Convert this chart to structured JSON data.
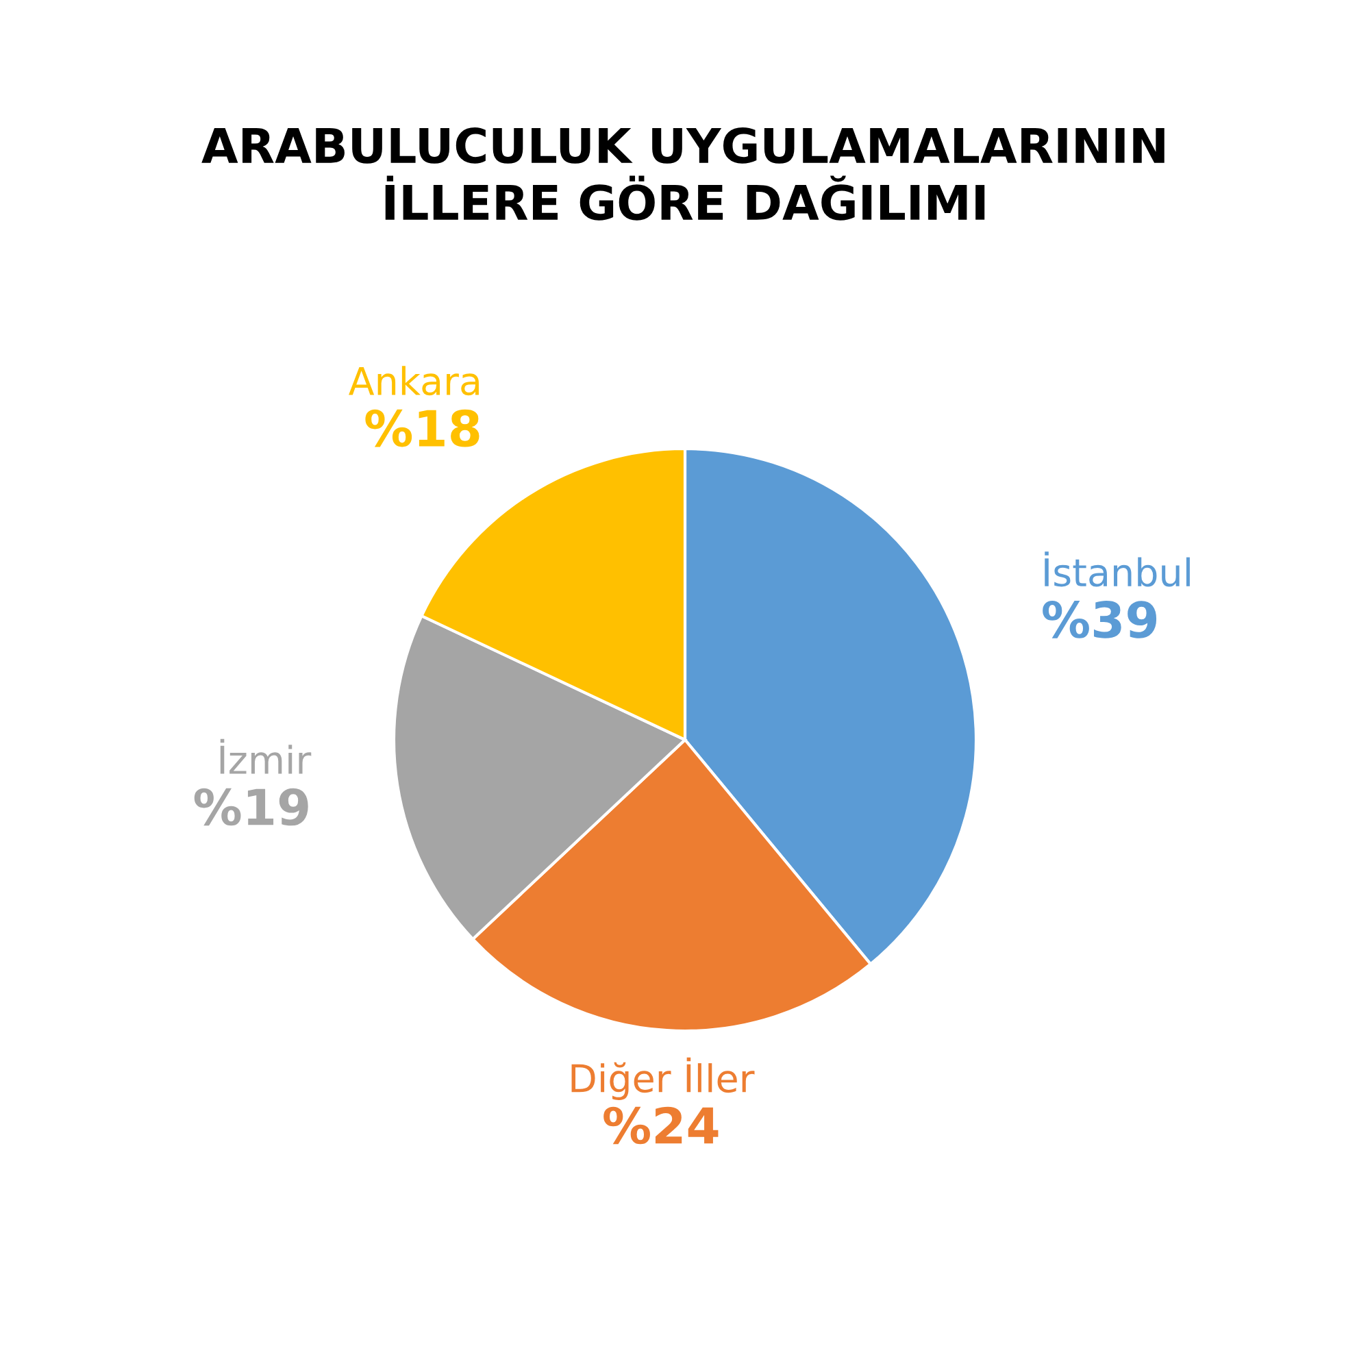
{
  "chart_data": {
    "type": "pie",
    "title": "ARABULUCULUK UYGULAMALARININ\nİLLERE GÖRE DAĞILIMI",
    "categories": [
      "İstanbul",
      "Diğer İller",
      "İzmir",
      "Ankara"
    ],
    "values": [
      39,
      24,
      19,
      18
    ],
    "value_labels": [
      "%39",
      "%24",
      "%19",
      "%18"
    ],
    "colors": [
      "#5b9bd5",
      "#ed7d31",
      "#a5a5a5",
      "#ffc000"
    ],
    "legend": false
  }
}
